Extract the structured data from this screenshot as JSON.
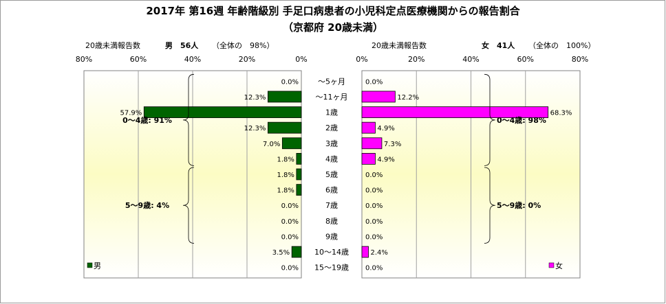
{
  "chart_data": {
    "type": "bar",
    "title_line1": "2017年 第16週 年齢階級別 手足口病患者の小児科定点医療機関からの報告割合",
    "title_line2": "（京都府 20歳未満）",
    "categories": [
      "～5ヶ月",
      "～11ヶ月",
      "1歳",
      "2歳",
      "3歳",
      "4歳",
      "5歳",
      "6歳",
      "7歳",
      "8歳",
      "9歳",
      "10～14歳",
      "15～19歳"
    ],
    "xlim": [
      0,
      80
    ],
    "ticks": [
      0,
      20,
      40,
      60,
      80
    ],
    "tick_labels_left": [
      "0%",
      "20%",
      "40%",
      "60%",
      "80%"
    ],
    "tick_labels_right": [
      "0%",
      "20%",
      "40%",
      "60%",
      "80%"
    ],
    "series": [
      {
        "name": "男",
        "side": "left",
        "color": "#006400",
        "values": [
          0.0,
          12.3,
          57.9,
          12.3,
          7.0,
          1.8,
          1.8,
          1.8,
          0.0,
          0.0,
          0.0,
          3.5,
          0.0
        ],
        "labels": [
          "0.0%",
          "12.3%",
          "57.9%",
          "12.3%",
          "7.0%",
          "1.8%",
          "1.8%",
          "1.8%",
          "0.0%",
          "0.0%",
          "0.0%",
          "3.5%",
          "0.0%"
        ],
        "header_label": "20歳未満報告数",
        "header_sex": "男",
        "header_count": "56人",
        "header_note": "（全体の　98%）",
        "groups": [
          {
            "label": "0～4歳: 91%",
            "from": 0,
            "to": 5
          },
          {
            "label": "5～9歳: 4%",
            "from": 6,
            "to": 10
          }
        ]
      },
      {
        "name": "女",
        "side": "right",
        "color": "#ff00ff",
        "values": [
          0.0,
          12.2,
          68.3,
          4.9,
          7.3,
          4.9,
          0.0,
          0.0,
          0.0,
          0.0,
          0.0,
          2.4,
          0.0
        ],
        "labels": [
          "0.0%",
          "12.2%",
          "68.3%",
          "4.9%",
          "7.3%",
          "4.9%",
          "0.0%",
          "0.0%",
          "0.0%",
          "0.0%",
          "0.0%",
          "2.4%",
          "0.0%"
        ],
        "header_label": "20歳未満報告数",
        "header_sex": "女",
        "header_count": "41人",
        "header_note": "（全体の　100%）",
        "groups": [
          {
            "label": "0～4歳: 98%",
            "from": 0,
            "to": 5
          },
          {
            "label": "5～9歳: 0%",
            "from": 6,
            "to": 10
          }
        ]
      }
    ],
    "grid": true,
    "legend": "bottom-left (男), bottom-right (女)"
  }
}
